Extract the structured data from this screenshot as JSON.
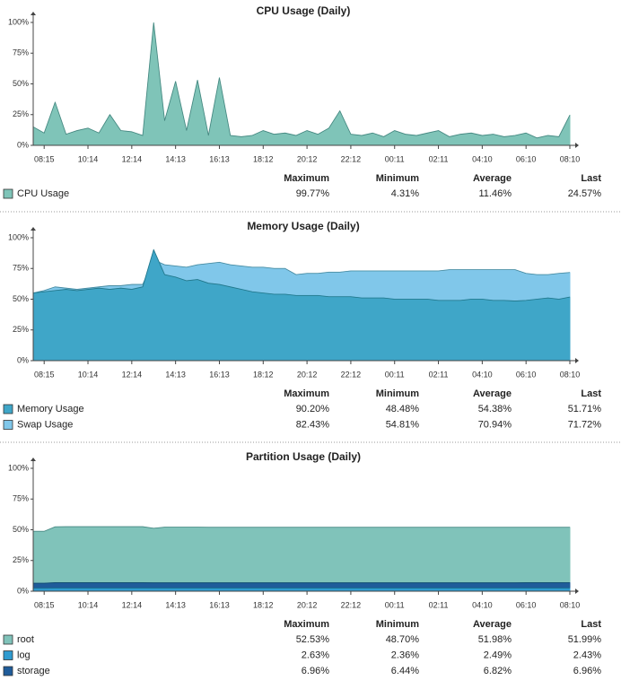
{
  "chart_data": [
    {
      "type": "area",
      "title": "CPU Usage (Daily)",
      "categories": [
        null,
        "08:15",
        null,
        null,
        null,
        "10:14",
        null,
        null,
        null,
        "12:14",
        null,
        null,
        null,
        "14:13",
        null,
        null,
        null,
        "16:13",
        null,
        null,
        null,
        "18:12",
        null,
        null,
        null,
        "20:12",
        null,
        null,
        null,
        "22:12",
        null,
        null,
        null,
        "00:11",
        null,
        null,
        null,
        "02:11",
        null,
        null,
        null,
        "04:10",
        null,
        null,
        null,
        "06:10",
        null,
        null,
        null,
        "08:10"
      ],
      "ylim": [
        0,
        100
      ],
      "yticks": [
        {
          "value": 0,
          "label": "0%"
        },
        {
          "value": 25,
          "label": "25%"
        },
        {
          "value": 50,
          "label": "50%"
        },
        {
          "value": 75,
          "label": "75%"
        },
        {
          "value": 100,
          "label": "100%"
        }
      ],
      "series": [
        {
          "name": "CPU Usage",
          "color": "#7fc4b8",
          "values": [
            15,
            10,
            35,
            9,
            12,
            14,
            10,
            25,
            12,
            11,
            8,
            99.77,
            20,
            52,
            12,
            53,
            8,
            55,
            8,
            7,
            8,
            12,
            9,
            10,
            8,
            12,
            9,
            14,
            28,
            9,
            8,
            10,
            7,
            12,
            9,
            8,
            10,
            12,
            7,
            9,
            10,
            8,
            9,
            7,
            8,
            10,
            6,
            8,
            7,
            24.57
          ]
        }
      ],
      "table": {
        "columns": [
          "Maximum",
          "Minimum",
          "Average",
          "Last"
        ],
        "rows": [
          [
            "99.77%",
            "4.31%",
            "11.46%",
            "24.57%"
          ]
        ]
      }
    },
    {
      "type": "area",
      "title": "Memory Usage (Daily)",
      "categories": [
        null,
        "08:15",
        null,
        null,
        null,
        "10:14",
        null,
        null,
        null,
        "12:14",
        null,
        null,
        null,
        "14:13",
        null,
        null,
        null,
        "16:13",
        null,
        null,
        null,
        "18:12",
        null,
        null,
        null,
        "20:12",
        null,
        null,
        null,
        "22:12",
        null,
        null,
        null,
        "00:11",
        null,
        null,
        null,
        "02:11",
        null,
        null,
        null,
        "04:10",
        null,
        null,
        null,
        "06:10",
        null,
        null,
        null,
        "08:10"
      ],
      "ylim": [
        0,
        100
      ],
      "yticks": [
        {
          "value": 0,
          "label": "0%"
        },
        {
          "value": 25,
          "label": "25%"
        },
        {
          "value": 50,
          "label": "50%"
        },
        {
          "value": 75,
          "label": "75%"
        },
        {
          "value": 100,
          "label": "100%"
        }
      ],
      "series": [
        {
          "name": "Memory Usage",
          "color": "#3fa6c8",
          "values": [
            55,
            56,
            57,
            58,
            57,
            58,
            59,
            58,
            59,
            58,
            60,
            90.2,
            70,
            68,
            65,
            66,
            63,
            62,
            60,
            58,
            56,
            55,
            54,
            54,
            53,
            53,
            53,
            52,
            52,
            52,
            51,
            51,
            51,
            50,
            50,
            50,
            50,
            49,
            49,
            49,
            50,
            50,
            49,
            49,
            48.5,
            49,
            50,
            51,
            50,
            51.71
          ]
        },
        {
          "name": "Swap Usage",
          "color": "#80c7ea",
          "values": [
            55,
            57,
            60,
            59,
            58,
            59,
            60,
            61,
            61,
            62,
            62,
            82,
            78,
            77,
            76,
            78,
            79,
            80,
            78,
            77,
            76,
            76,
            75,
            75,
            70,
            71,
            71,
            72,
            72,
            73,
            73,
            73,
            73,
            73,
            73,
            73,
            73,
            73,
            74,
            74,
            74,
            74,
            74,
            74,
            74,
            71,
            70,
            70,
            71,
            71.72
          ]
        }
      ],
      "table": {
        "columns": [
          "Maximum",
          "Minimum",
          "Average",
          "Last"
        ],
        "rows": [
          [
            "90.20%",
            "48.48%",
            "54.38%",
            "51.71%"
          ],
          [
            "82.43%",
            "54.81%",
            "70.94%",
            "71.72%"
          ]
        ]
      }
    },
    {
      "type": "area",
      "title": "Partition Usage (Daily)",
      "categories": [
        null,
        "08:15",
        null,
        null,
        null,
        "10:14",
        null,
        null,
        null,
        "12:14",
        null,
        null,
        null,
        "14:13",
        null,
        null,
        null,
        "16:13",
        null,
        null,
        null,
        "18:12",
        null,
        null,
        null,
        "20:12",
        null,
        null,
        null,
        "22:12",
        null,
        null,
        null,
        "00:11",
        null,
        null,
        null,
        "02:11",
        null,
        null,
        null,
        "04:10",
        null,
        null,
        null,
        "06:10",
        null,
        null,
        null,
        "08:10"
      ],
      "ylim": [
        0,
        100
      ],
      "yticks": [
        {
          "value": 0,
          "label": "0%"
        },
        {
          "value": 25,
          "label": "25%"
        },
        {
          "value": 50,
          "label": "50%"
        },
        {
          "value": 75,
          "label": "75%"
        },
        {
          "value": 100,
          "label": "100%"
        }
      ],
      "series": [
        {
          "name": "root",
          "color": "#80c3ba",
          "values": [
            48.7,
            48.7,
            52.4,
            52.5,
            52.5,
            52.5,
            52.5,
            52.5,
            52.5,
            52.5,
            52.5,
            51.2,
            52.1,
            52.1,
            52.1,
            52.1,
            52,
            52,
            52,
            52,
            52,
            52,
            52,
            52,
            52,
            52,
            52,
            52,
            52,
            52,
            52,
            52,
            52,
            52,
            52,
            52,
            52,
            52,
            52,
            52,
            52,
            52,
            52,
            52,
            52,
            52,
            52,
            52,
            52,
            51.99
          ]
        },
        {
          "name": "log",
          "color": "#2f9bd0",
          "values": [
            2.4,
            2.4,
            2.5,
            2.5,
            2.5,
            2.5,
            2.5,
            2.5,
            2.5,
            2.5,
            2.5,
            2.5,
            2.5,
            2.5,
            2.5,
            2.5,
            2.5,
            2.5,
            2.5,
            2.5,
            2.5,
            2.5,
            2.5,
            2.5,
            2.5,
            2.5,
            2.5,
            2.5,
            2.5,
            2.5,
            2.5,
            2.5,
            2.5,
            2.5,
            2.5,
            2.5,
            2.5,
            2.5,
            2.5,
            2.5,
            2.5,
            2.5,
            2.5,
            2.5,
            2.5,
            2.5,
            2.5,
            2.5,
            2.5,
            2.43
          ]
        },
        {
          "name": "storage",
          "color": "#1f5c9a",
          "values": [
            6.5,
            6.5,
            6.9,
            6.9,
            6.9,
            6.9,
            6.9,
            6.9,
            6.9,
            6.9,
            6.9,
            6.8,
            6.8,
            6.8,
            6.8,
            6.8,
            6.8,
            6.8,
            6.8,
            6.8,
            6.8,
            6.8,
            6.8,
            6.8,
            6.8,
            6.8,
            6.8,
            6.8,
            6.8,
            6.8,
            6.8,
            6.8,
            6.8,
            6.8,
            6.8,
            6.8,
            6.8,
            6.8,
            6.8,
            6.8,
            6.8,
            6.8,
            6.8,
            6.8,
            6.8,
            6.9,
            6.9,
            6.9,
            6.9,
            6.96
          ]
        }
      ],
      "table": {
        "columns": [
          "Maximum",
          "Minimum",
          "Average",
          "Last"
        ],
        "rows": [
          [
            "52.53%",
            "48.70%",
            "51.98%",
            "51.99%"
          ],
          [
            "2.63%",
            "2.36%",
            "2.49%",
            "2.43%"
          ],
          [
            "6.96%",
            "6.44%",
            "6.82%",
            "6.96%"
          ]
        ]
      }
    }
  ]
}
